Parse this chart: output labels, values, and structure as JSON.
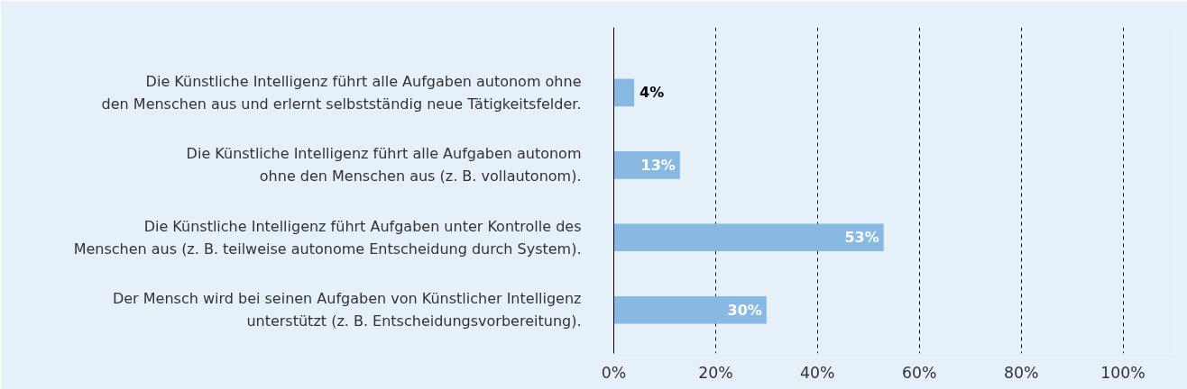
{
  "chart_data": {
    "type": "bar",
    "orientation": "horizontal",
    "categories": [
      "Die Künstliche Intelligenz führt alle Aufgaben autonom ohne\nden Menschen aus und erlernt selbstständig neue Tätigkeitsfelder.",
      "Die Künstliche Intelligenz führt alle Aufgaben autonom\nohne den Menschen aus (z. B. vollautonom).",
      "Die Künstliche Intelligenz führt Aufgaben unter Kontrolle des\nMenschen aus (z. B. teilweise autonome Entscheidung durch System).",
      "Der Mensch wird bei seinen Aufgaben von Künstlicher Intelligenz\nunterstützt (z. B. Entscheidungsvorbereitung)."
    ],
    "values": [
      4,
      13,
      53,
      30
    ],
    "color": "#88b9e3",
    "value_labels": [
      "4%",
      "13%",
      "53%",
      "30%"
    ],
    "xlim": [
      0,
      110
    ],
    "xticks": [
      {
        "value": 0,
        "label": "0%"
      },
      {
        "value": 20,
        "label": "20%"
      },
      {
        "value": 40,
        "label": "40%"
      },
      {
        "value": 60,
        "label": "60%"
      },
      {
        "value": 80,
        "label": "80%"
      },
      {
        "value": 100,
        "label": "100%"
      }
    ],
    "grid": "x"
  }
}
